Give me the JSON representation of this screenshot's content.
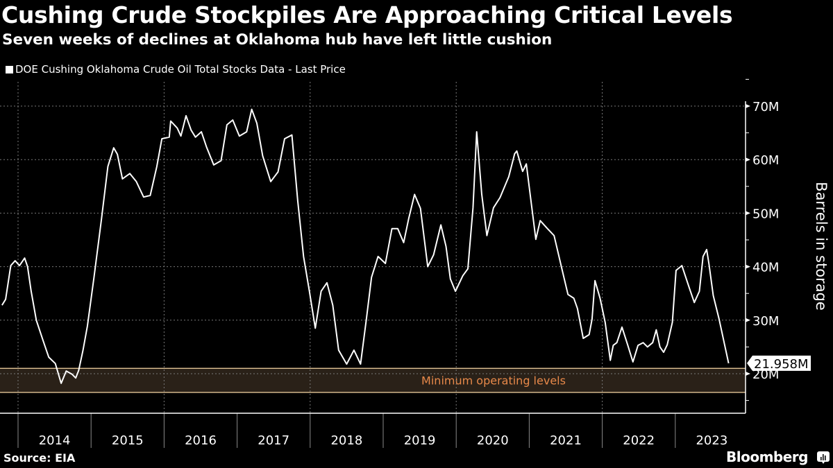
{
  "header": {
    "title": "Cushing Crude Stockpiles Are Approaching Critical Levels",
    "subtitle": "Seven weeks of declines at Oklahoma hub have left little cushion"
  },
  "footer": {
    "source": "Source: EIA",
    "brand": "Bloomberg",
    "brand_icon": "bloomberg-terminal-icon"
  },
  "colors": {
    "background": "#000000",
    "line": "#ffffff",
    "band_fill": "#2a2118",
    "band_border": "#f6d7a4",
    "band_label": "#e8894a",
    "grid": "#7a7a7a"
  },
  "chart_data": {
    "type": "line",
    "title": "Cushing Crude Stockpiles Are Approaching Critical Levels",
    "subtitle": "Seven weeks of declines at Oklahoma hub have left little cushion",
    "xlabel": "",
    "ylabel": "Barrels in storage",
    "legend": {
      "position": "top-left",
      "entries": [
        "DOE Cushing Oklahoma Crude Oil Total Stocks Data - Last Price"
      ]
    },
    "grid": true,
    "x_unit": "year",
    "xlim": [
      2013.75,
      2024.0
    ],
    "ylim": [
      12,
      75
    ],
    "y_ticks": [
      20,
      30,
      40,
      50,
      60,
      70
    ],
    "y_tick_labels": [
      "20M",
      "30M",
      "40M",
      "50M",
      "60M",
      "70M"
    ],
    "x_tick_labels": [
      "2014",
      "2015",
      "2016",
      "2017",
      "2018",
      "2019",
      "2020",
      "2021",
      "2022",
      "2023"
    ],
    "last_value_label": "21.958M",
    "last_value": 21.958,
    "annotation_band": {
      "label": "Minimum operating levels",
      "from": 16.5,
      "to": 21.0
    },
    "series": [
      {
        "name": "DOE Cushing Oklahoma Crude Oil Total Stocks Data - Last Price",
        "x": [
          2013.78,
          2013.83,
          2013.9,
          2013.96,
          2014.02,
          2014.09,
          2014.13,
          2014.18,
          2014.25,
          2014.34,
          2014.42,
          2014.51,
          2014.59,
          2014.66,
          2014.74,
          2014.79,
          2014.83,
          2014.89,
          2014.95,
          2015.04,
          2015.14,
          2015.23,
          2015.31,
          2015.36,
          2015.43,
          2015.53,
          2015.62,
          2015.72,
          2015.81,
          2015.9,
          2015.97,
          2016.07,
          2016.09,
          2016.18,
          2016.23,
          2016.3,
          2016.37,
          2016.43,
          2016.51,
          2016.58,
          2016.68,
          2016.78,
          2016.86,
          2016.94,
          2017.03,
          2017.13,
          2017.2,
          2017.27,
          2017.35,
          2017.46,
          2017.56,
          2017.65,
          2017.75,
          2017.83,
          2017.91,
          2017.99,
          2018.07,
          2018.15,
          2018.23,
          2018.31,
          2018.39,
          2018.5,
          2018.6,
          2018.69,
          2018.77,
          2018.84,
          2018.93,
          2019.03,
          2019.12,
          2019.2,
          2019.28,
          2019.35,
          2019.43,
          2019.51,
          2019.61,
          2019.69,
          2019.79,
          2019.86,
          2019.92,
          2019.99,
          2020.09,
          2020.16,
          2020.23,
          2020.28,
          2020.35,
          2020.42,
          2020.51,
          2020.6,
          2020.72,
          2020.8,
          2020.83,
          2020.91,
          2020.96,
          2021.06,
          2021.09,
          2021.15,
          2021.25,
          2021.34,
          2021.44,
          2021.53,
          2021.61,
          2021.66,
          2021.74,
          2021.82,
          2021.86,
          2021.9,
          2021.97,
          2022.04,
          2022.11,
          2022.15,
          2022.2,
          2022.27,
          2022.35,
          2022.42,
          2022.49,
          2022.56,
          2022.62,
          2022.69,
          2022.74,
          2022.79,
          2022.84,
          2022.89,
          2022.96,
          2023.01,
          2023.09,
          2023.19,
          2023.26,
          2023.33,
          2023.38,
          2023.43,
          2023.46,
          2023.52,
          2023.6,
          2023.73
        ],
        "values": [
          32.8,
          33.9,
          40.2,
          41.1,
          40.2,
          41.6,
          40.0,
          35.4,
          30.0,
          26.3,
          23.1,
          21.9,
          18.2,
          20.5,
          19.9,
          19.2,
          20.6,
          24.4,
          28.9,
          38.0,
          48.6,
          58.7,
          62.2,
          61.0,
          56.4,
          57.4,
          55.9,
          53.0,
          53.3,
          58.7,
          63.9,
          64.2,
          67.2,
          65.9,
          64.4,
          68.2,
          65.5,
          64.2,
          65.2,
          62.4,
          59.0,
          59.8,
          66.5,
          67.4,
          64.4,
          65.2,
          69.4,
          66.8,
          60.7,
          55.9,
          57.7,
          63.9,
          64.6,
          52.3,
          41.9,
          35.4,
          28.5,
          35.4,
          37.0,
          32.8,
          24.4,
          21.8,
          24.4,
          21.8,
          30.2,
          38.0,
          41.9,
          40.6,
          47.1,
          47.1,
          44.5,
          49.0,
          53.5,
          50.9,
          40.0,
          42.2,
          47.8,
          43.8,
          37.7,
          35.4,
          38.3,
          39.6,
          51.0,
          65.2,
          53.5,
          45.8,
          51.0,
          52.9,
          56.8,
          61.1,
          61.6,
          57.8,
          59.2,
          48.4,
          45.1,
          48.6,
          47.1,
          45.8,
          40.0,
          34.8,
          34.1,
          32.2,
          26.6,
          27.3,
          30.2,
          37.4,
          34.1,
          29.6,
          22.5,
          25.3,
          25.8,
          28.7,
          25.3,
          22.2,
          25.3,
          25.8,
          25.0,
          25.8,
          28.2,
          25.0,
          24.0,
          25.4,
          29.6,
          39.3,
          40.2,
          36.1,
          33.3,
          35.4,
          41.9,
          43.2,
          40.6,
          34.6,
          30.2,
          21.958
        ]
      }
    ]
  }
}
